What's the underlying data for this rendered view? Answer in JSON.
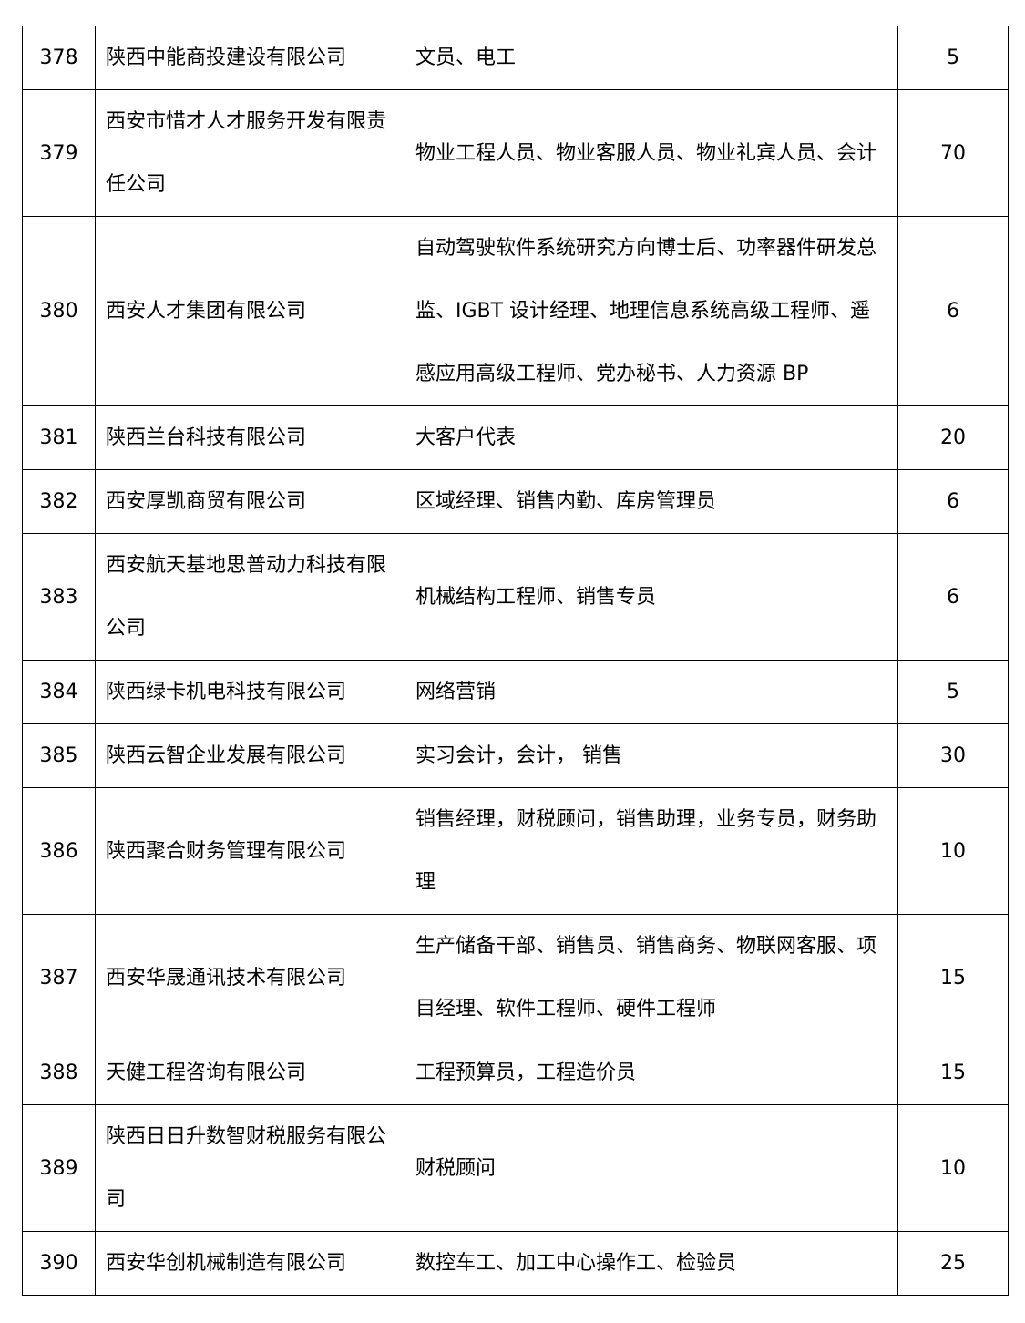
{
  "rows": [
    {
      "no": "378",
      "company": "陕西中能商投建设有限公司",
      "positions": "文员、电工",
      "count": "5"
    },
    {
      "no": "379",
      "company": "西安市惜才人才服务开发有限责任公司",
      "positions": "物业工程人员、物业客服人员、物业礼宾人员、会计",
      "count": "70"
    },
    {
      "no": "380",
      "company": "西安人才集团有限公司",
      "positions": "自动驾驶软件系统研究方向博士后、功率器件研发总监、IGBT 设计经理、地理信息系统高级工程师、遥感应用高级工程师、党办秘书、人力资源 BP",
      "count": "6"
    },
    {
      "no": "381",
      "company": "陕西兰台科技有限公司",
      "positions": "大客户代表",
      "count": "20"
    },
    {
      "no": "382",
      "company": "西安厚凯商贸有限公司",
      "positions": "区域经理、销售内勤、库房管理员",
      "count": "6"
    },
    {
      "no": "383",
      "company": "西安航天基地思普动力科技有限公司",
      "positions": "机械结构工程师、销售专员",
      "count": "6"
    },
    {
      "no": "384",
      "company": "陕西绿卡机电科技有限公司",
      "positions": "网络营销",
      "count": "5"
    },
    {
      "no": "385",
      "company": "陕西云智企业发展有限公司",
      "positions": "实习会计，会计，  销售",
      "count": "30"
    },
    {
      "no": "386",
      "company": "陕西聚合财务管理有限公司",
      "positions": "销售经理，财税顾问，销售助理，业务专员，财务助理",
      "count": "10"
    },
    {
      "no": "387",
      "company": "西安华晟通讯技术有限公司",
      "positions": "生产储备干部、销售员、销售商务、物联网客服、项目经理、软件工程师、硬件工程师",
      "count": "15"
    },
    {
      "no": "388",
      "company": "天健工程咨询有限公司",
      "positions": "工程预算员，工程造价员",
      "count": "15"
    },
    {
      "no": "389",
      "company": "陕西日日升数智财税服务有限公司",
      "positions": "财税顾问",
      "count": "10"
    },
    {
      "no": "390",
      "company": "西安华创机械制造有限公司",
      "positions": "数控车工、加工中心操作工、检验员",
      "count": "25"
    }
  ]
}
